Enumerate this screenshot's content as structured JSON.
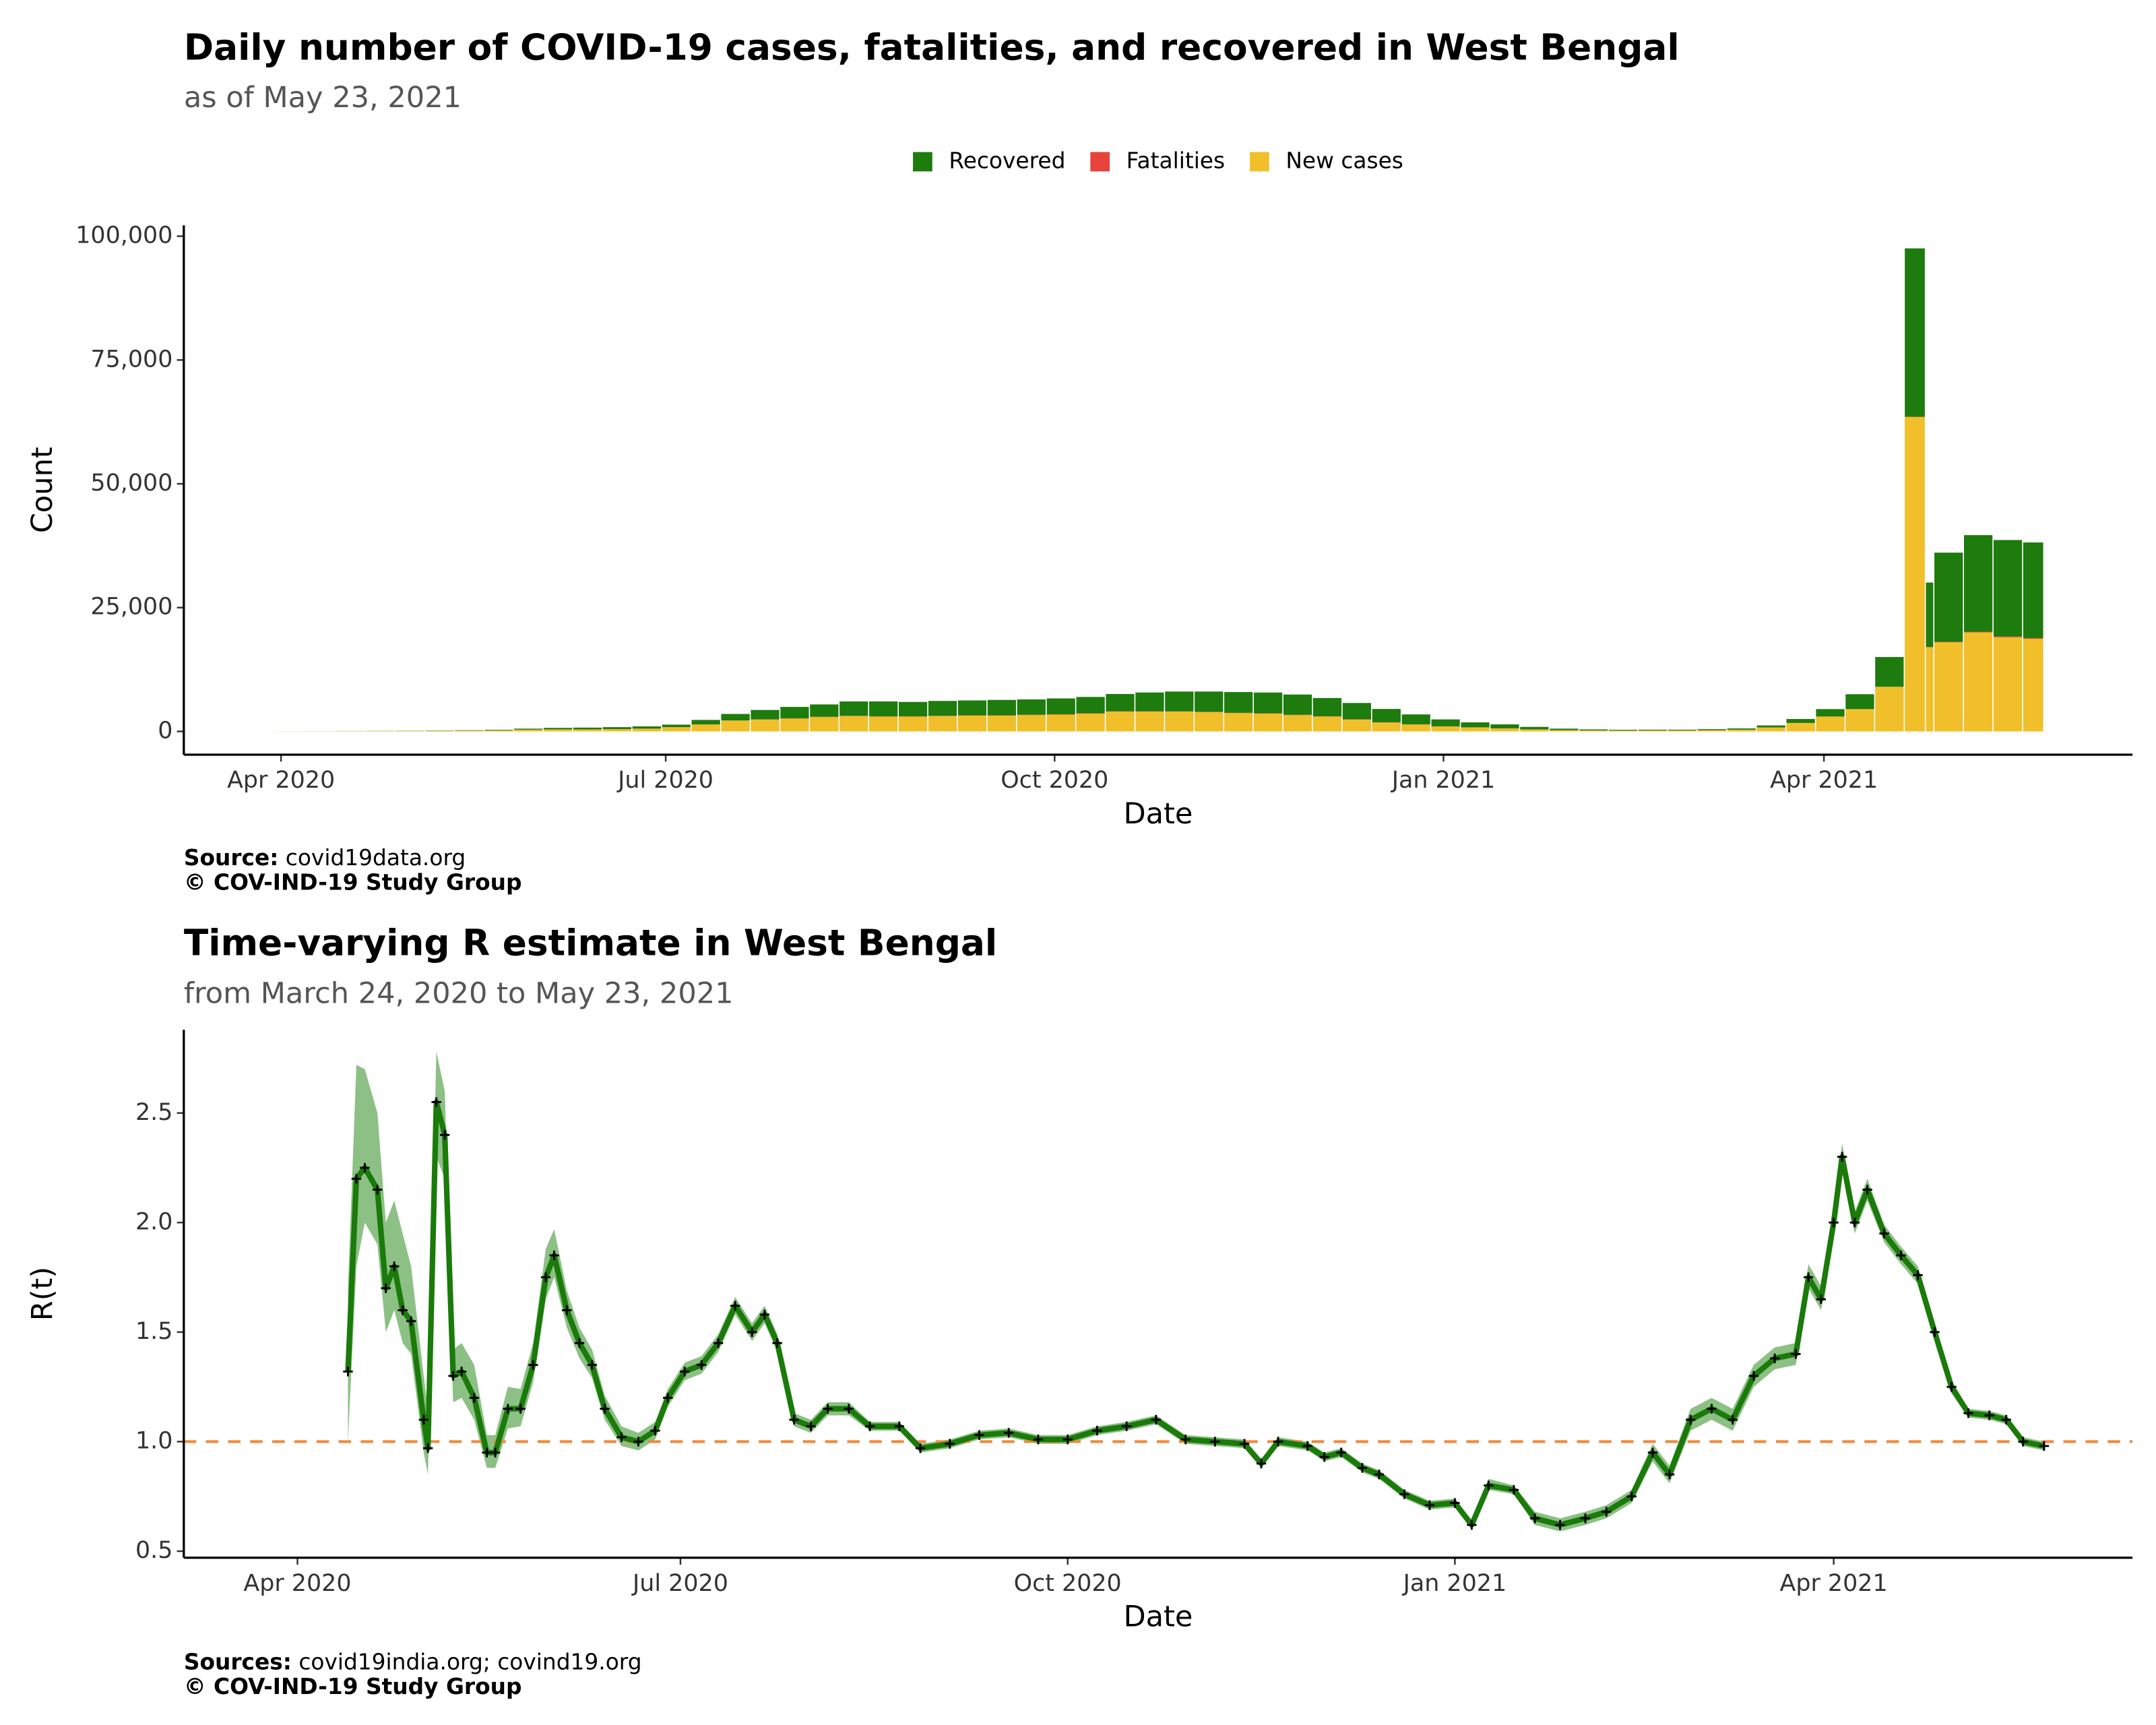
{
  "chart_data": [
    {
      "type": "bar",
      "title": "Daily number of COVID-19 cases, fatalities, and recovered in West Bengal",
      "subtitle": "as of May 23, 2021",
      "xlabel": "Date",
      "ylabel": "Count",
      "caption": {
        "label": "Source:",
        "text": "covid19data.org",
        "credit": "© COV-IND-19 Study Group"
      },
      "legend_position": "top",
      "xlim": [
        "2020-03-09",
        "2021-06-13"
      ],
      "xticks": [
        {
          "value": "2020-04-01",
          "label": "Apr 2020"
        },
        {
          "value": "2020-07-01",
          "label": "Jul 2020"
        },
        {
          "value": "2020-10-01",
          "label": "Oct 2020"
        },
        {
          "value": "2021-01-01",
          "label": "Jan 2021"
        },
        {
          "value": "2021-04-01",
          "label": "Apr 2021"
        }
      ],
      "ylim": [
        -4700,
        102200
      ],
      "yticks": [
        0,
        {
          "value": 25000,
          "label": "25,000"
        },
        {
          "value": 50000,
          "label": "50,000"
        },
        {
          "value": 75000,
          "label": "75,000"
        },
        {
          "value": 100000,
          "label": "100,000"
        }
      ],
      "x": [
        "2020-03-24",
        "2020-03-31",
        "2020-04-07",
        "2020-04-14",
        "2020-04-21",
        "2020-04-28",
        "2020-05-05",
        "2020-05-12",
        "2020-05-19",
        "2020-05-26",
        "2020-06-02",
        "2020-06-09",
        "2020-06-16",
        "2020-06-23",
        "2020-06-30",
        "2020-07-07",
        "2020-07-14",
        "2020-07-21",
        "2020-07-28",
        "2020-08-04",
        "2020-08-11",
        "2020-08-18",
        "2020-08-25",
        "2020-09-01",
        "2020-09-08",
        "2020-09-15",
        "2020-09-22",
        "2020-09-29",
        "2020-10-06",
        "2020-10-13",
        "2020-10-20",
        "2020-10-27",
        "2020-11-03",
        "2020-11-10",
        "2020-11-17",
        "2020-11-24",
        "2020-12-01",
        "2020-12-08",
        "2020-12-15",
        "2020-12-22",
        "2020-12-29",
        "2021-01-05",
        "2021-01-12",
        "2021-01-19",
        "2021-01-26",
        "2021-02-02",
        "2021-02-09",
        "2021-02-16",
        "2021-02-23",
        "2021-03-02",
        "2021-03-09",
        "2021-03-16",
        "2021-03-23",
        "2021-03-30",
        "2021-04-06",
        "2021-04-13",
        "2021-04-20",
        "2021-04-25",
        "2021-04-27",
        "2021-05-04",
        "2021-05-11",
        "2021-05-18",
        "2021-05-23"
      ],
      "series": [
        {
          "name": "Recovered",
          "color": "#1e7b0e",
          "values": [
            0,
            0,
            5,
            10,
            20,
            30,
            40,
            60,
            80,
            120,
            200,
            300,
            350,
            400,
            450,
            500,
            900,
            1300,
            1900,
            2300,
            2500,
            2900,
            3000,
            2900,
            3000,
            3000,
            3100,
            3100,
            3200,
            3300,
            3500,
            3800,
            4000,
            4100,
            4200,
            4200,
            4100,
            3700,
            3300,
            2700,
            2000,
            1400,
            1000,
            800,
            500,
            300,
            200,
            150,
            150,
            150,
            200,
            250,
            400,
            800,
            1500,
            3000,
            6000,
            34000,
            13000,
            18000,
            19500,
            19500,
            19300
          ]
        },
        {
          "name": "Fatalities",
          "color": "#e8433a",
          "values": [
            0,
            0,
            1,
            1,
            2,
            3,
            5,
            7,
            8,
            10,
            10,
            12,
            12,
            13,
            15,
            17,
            20,
            25,
            30,
            45,
            50,
            50,
            55,
            55,
            55,
            58,
            60,
            60,
            60,
            60,
            62,
            60,
            55,
            52,
            50,
            50,
            48,
            45,
            40,
            35,
            30,
            25,
            22,
            18,
            12,
            8,
            5,
            3,
            3,
            3,
            3,
            4,
            5,
            6,
            8,
            12,
            20,
            38,
            60,
            100,
            135,
            150,
            155
          ]
        },
        {
          "name": "New cases",
          "color": "#f0bf2a",
          "values": [
            5,
            10,
            20,
            30,
            50,
            60,
            70,
            100,
            150,
            200,
            350,
            400,
            400,
            450,
            550,
            850,
            1400,
            2200,
            2400,
            2600,
            2900,
            3100,
            3000,
            3000,
            3100,
            3200,
            3200,
            3300,
            3400,
            3600,
            4000,
            4000,
            4000,
            3900,
            3700,
            3600,
            3300,
            3000,
            2400,
            1800,
            1400,
            1000,
            800,
            600,
            400,
            250,
            200,
            180,
            200,
            200,
            250,
            350,
            800,
            1700,
            3000,
            4500,
            9000,
            63500,
            17000,
            18000,
            20000,
            19000,
            18700
          ]
        }
      ]
    },
    {
      "type": "line",
      "title": "Time-varying R estimate in West Bengal",
      "subtitle": "from March 24, 2020 to May 23, 2021",
      "xlabel": "Date",
      "ylabel": "R(t)",
      "caption": {
        "label": "Sources:",
        "text": "covid19india.org; covind19.org",
        "credit": "© COV-IND-19 Study Group"
      },
      "xlim": [
        "2020-03-05",
        "2021-06-11"
      ],
      "xticks": [
        {
          "value": "2020-04-01",
          "label": "Apr 2020"
        },
        {
          "value": "2020-07-01",
          "label": "Jul 2020"
        },
        {
          "value": "2020-10-01",
          "label": "Oct 2020"
        },
        {
          "value": "2021-01-01",
          "label": "Jan 2021"
        },
        {
          "value": "2021-04-01",
          "label": "Apr 2021"
        }
      ],
      "ylim": [
        0.47,
        2.88
      ],
      "yticks": [
        0.5,
        {
          "value": 1,
          "label": "1.0"
        },
        1.5,
        {
          "value": 2,
          "label": "2.0"
        },
        2.5
      ],
      "reference_line": 1,
      "reference_color": "#f0893a",
      "color": "#1a7a0a",
      "band_color": "#4f9e42",
      "marker_color": "#000000",
      "x": [
        "2020-04-13",
        "2020-04-15",
        "2020-04-17",
        "2020-04-20",
        "2020-04-22",
        "2020-04-24",
        "2020-04-26",
        "2020-04-28",
        "2020-05-01",
        "2020-05-02",
        "2020-05-04",
        "2020-05-06",
        "2020-05-08",
        "2020-05-10",
        "2020-05-13",
        "2020-05-16",
        "2020-05-18",
        "2020-05-21",
        "2020-05-24",
        "2020-05-27",
        "2020-05-30",
        "2020-06-01",
        "2020-06-04",
        "2020-06-07",
        "2020-06-10",
        "2020-06-13",
        "2020-06-17",
        "2020-06-21",
        "2020-06-25",
        "2020-06-28",
        "2020-07-02",
        "2020-07-06",
        "2020-07-10",
        "2020-07-14",
        "2020-07-18",
        "2020-07-21",
        "2020-07-24",
        "2020-07-28",
        "2020-08-01",
        "2020-08-05",
        "2020-08-10",
        "2020-08-15",
        "2020-08-22",
        "2020-08-27",
        "2020-09-03",
        "2020-09-10",
        "2020-09-17",
        "2020-09-24",
        "2020-10-01",
        "2020-10-08",
        "2020-10-15",
        "2020-10-22",
        "2020-10-29",
        "2020-11-05",
        "2020-11-12",
        "2020-11-16",
        "2020-11-20",
        "2020-11-27",
        "2020-12-01",
        "2020-12-05",
        "2020-12-10",
        "2020-12-14",
        "2020-12-20",
        "2020-12-26",
        "2021-01-01",
        "2021-01-05",
        "2021-01-09",
        "2021-01-15",
        "2021-01-20",
        "2021-01-26",
        "2021-02-01",
        "2021-02-06",
        "2021-02-12",
        "2021-02-17",
        "2021-02-21",
        "2021-02-26",
        "2021-03-03",
        "2021-03-08",
        "2021-03-13",
        "2021-03-18",
        "2021-03-23",
        "2021-03-26",
        "2021-03-29",
        "2021-04-01",
        "2021-04-03",
        "2021-04-06",
        "2021-04-09",
        "2021-04-13",
        "2021-04-17",
        "2021-04-21",
        "2021-04-25",
        "2021-04-29",
        "2021-05-03",
        "2021-05-08",
        "2021-05-12",
        "2021-05-16",
        "2021-05-21"
      ],
      "values": [
        1.32,
        2.2,
        2.25,
        2.15,
        1.7,
        1.8,
        1.6,
        1.55,
        1.1,
        0.97,
        2.55,
        2.4,
        1.3,
        1.32,
        1.2,
        0.95,
        0.95,
        1.15,
        1.15,
        1.35,
        1.75,
        1.85,
        1.6,
        1.45,
        1.35,
        1.15,
        1.02,
        1.0,
        1.05,
        1.2,
        1.32,
        1.35,
        1.45,
        1.62,
        1.5,
        1.58,
        1.45,
        1.1,
        1.07,
        1.15,
        1.15,
        1.07,
        1.07,
        0.97,
        0.99,
        1.03,
        1.04,
        1.01,
        1.01,
        1.05,
        1.07,
        1.1,
        1.01,
        1.0,
        0.99,
        0.9,
        1.0,
        0.98,
        0.93,
        0.95,
        0.88,
        0.85,
        0.76,
        0.71,
        0.72,
        0.62,
        0.8,
        0.78,
        0.65,
        0.62,
        0.65,
        0.68,
        0.75,
        0.95,
        0.85,
        1.1,
        1.15,
        1.1,
        1.3,
        1.38,
        1.4,
        1.75,
        1.65,
        2.0,
        2.3,
        2.0,
        2.15,
        1.95,
        1.85,
        1.76,
        1.5,
        1.25,
        1.13,
        1.12,
        1.1,
        1.0,
        0.98
      ],
      "ci_lower": [
        1.0,
        1.8,
        2.0,
        1.9,
        1.5,
        1.6,
        1.45,
        1.4,
        0.95,
        0.85,
        2.3,
        2.2,
        1.18,
        1.2,
        1.1,
        0.88,
        0.88,
        1.06,
        1.07,
        1.27,
        1.65,
        1.75,
        1.52,
        1.38,
        1.29,
        1.1,
        0.98,
        0.96,
        1.01,
        1.16,
        1.28,
        1.31,
        1.41,
        1.58,
        1.46,
        1.54,
        1.41,
        1.07,
        1.04,
        1.12,
        1.12,
        1.05,
        1.05,
        0.95,
        0.97,
        1.01,
        1.02,
        0.99,
        0.99,
        1.03,
        1.05,
        1.08,
        0.99,
        0.98,
        0.97,
        0.88,
        0.98,
        0.96,
        0.91,
        0.93,
        0.86,
        0.83,
        0.74,
        0.69,
        0.7,
        0.6,
        0.78,
        0.76,
        0.62,
        0.59,
        0.62,
        0.65,
        0.72,
        0.91,
        0.81,
        1.05,
        1.1,
        1.05,
        1.25,
        1.33,
        1.35,
        1.7,
        1.6,
        1.94,
        2.24,
        1.95,
        2.1,
        1.91,
        1.81,
        1.72,
        1.47,
        1.22,
        1.11,
        1.1,
        1.08,
        0.98,
        0.96
      ],
      "ci_upper": [
        1.7,
        2.72,
        2.7,
        2.5,
        2.0,
        2.1,
        1.95,
        1.8,
        1.3,
        1.15,
        2.78,
        2.6,
        1.42,
        1.45,
        1.35,
        1.03,
        1.03,
        1.25,
        1.24,
        1.45,
        1.88,
        1.97,
        1.69,
        1.52,
        1.42,
        1.21,
        1.07,
        1.04,
        1.09,
        1.24,
        1.36,
        1.39,
        1.49,
        1.66,
        1.54,
        1.62,
        1.49,
        1.13,
        1.1,
        1.18,
        1.18,
        1.09,
        1.09,
        0.99,
        1.01,
        1.05,
        1.06,
        1.03,
        1.03,
        1.07,
        1.09,
        1.12,
        1.03,
        1.02,
        1.01,
        0.92,
        1.02,
        1.0,
        0.95,
        0.97,
        0.9,
        0.87,
        0.78,
        0.73,
        0.74,
        0.64,
        0.83,
        0.8,
        0.68,
        0.65,
        0.68,
        0.71,
        0.78,
        0.99,
        0.89,
        1.15,
        1.2,
        1.15,
        1.35,
        1.43,
        1.45,
        1.81,
        1.71,
        2.06,
        2.36,
        2.05,
        2.2,
        1.99,
        1.89,
        1.8,
        1.53,
        1.28,
        1.15,
        1.14,
        1.12,
        1.02,
        1.0
      ]
    }
  ]
}
